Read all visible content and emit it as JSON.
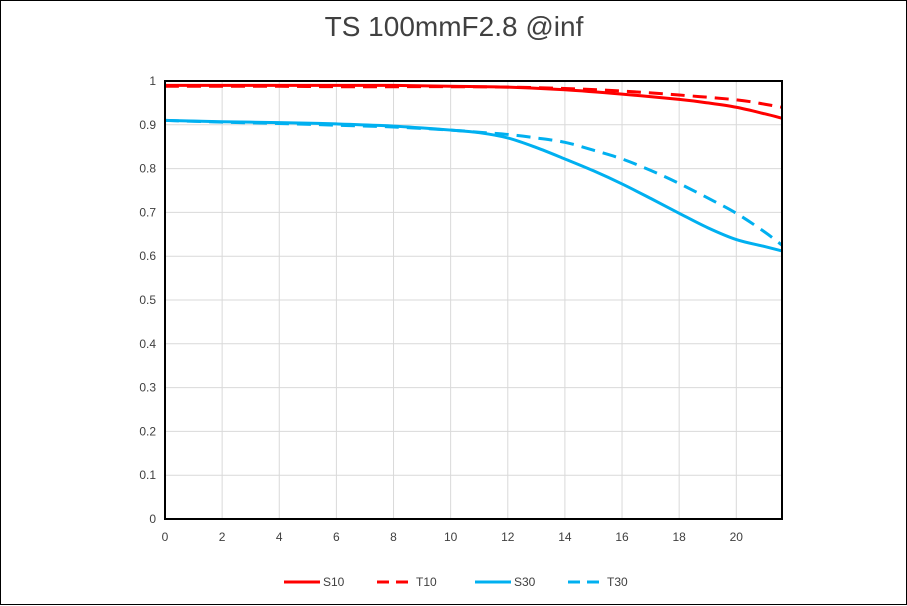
{
  "chart_data": {
    "type": "line",
    "title": "TS 100mmF2.8 @inf",
    "xlim": [
      0,
      21.6
    ],
    "ylim": [
      0,
      1
    ],
    "x_ticks": [
      0,
      2,
      4,
      6,
      8,
      10,
      12,
      14,
      16,
      18,
      20
    ],
    "y_ticks": [
      0,
      0.1,
      0.2,
      0.3,
      0.4,
      0.5,
      0.6,
      0.7,
      0.8,
      0.9,
      1
    ],
    "y_tick_labels": [
      "0",
      "0.1",
      "0.2",
      "0.3",
      "0.4",
      "0.5",
      "0.6",
      "0.7",
      "0.8",
      "0.9",
      "1"
    ],
    "grid": true,
    "legend_position": "bottom",
    "series": [
      {
        "name": "S10",
        "color": "#ff0000",
        "dash": "solid",
        "x": [
          0,
          2,
          4,
          6,
          8,
          10,
          12,
          14,
          16,
          18,
          19,
          20,
          21,
          21.6
        ],
        "y": [
          0.99,
          0.99,
          0.99,
          0.99,
          0.99,
          0.988,
          0.986,
          0.98,
          0.97,
          0.958,
          0.95,
          0.94,
          0.925,
          0.915
        ]
      },
      {
        "name": "T10",
        "color": "#ff0000",
        "dash": "dashed",
        "x": [
          0,
          2,
          4,
          6,
          8,
          10,
          12,
          14,
          16,
          18,
          20,
          21,
          21.6
        ],
        "y": [
          0.988,
          0.988,
          0.988,
          0.987,
          0.987,
          0.987,
          0.986,
          0.983,
          0.977,
          0.968,
          0.957,
          0.947,
          0.94
        ]
      },
      {
        "name": "S30",
        "color": "#00b0f0",
        "dash": "solid",
        "x": [
          0,
          2,
          4,
          6,
          8,
          10,
          11,
          12,
          13,
          14,
          15,
          16,
          17,
          18,
          19,
          20,
          21,
          21.6
        ],
        "y": [
          0.91,
          0.907,
          0.905,
          0.902,
          0.897,
          0.888,
          0.882,
          0.87,
          0.848,
          0.822,
          0.795,
          0.765,
          0.732,
          0.698,
          0.665,
          0.638,
          0.622,
          0.612
        ]
      },
      {
        "name": "T30",
        "color": "#00b0f0",
        "dash": "dashed",
        "x": [
          0,
          2,
          4,
          6,
          8,
          10,
          11,
          12,
          13,
          14,
          15,
          16,
          17,
          18,
          19,
          20,
          21,
          21.6
        ],
        "y": [
          0.91,
          0.906,
          0.903,
          0.899,
          0.895,
          0.888,
          0.883,
          0.878,
          0.87,
          0.86,
          0.842,
          0.822,
          0.796,
          0.766,
          0.733,
          0.698,
          0.655,
          0.625
        ]
      }
    ]
  }
}
